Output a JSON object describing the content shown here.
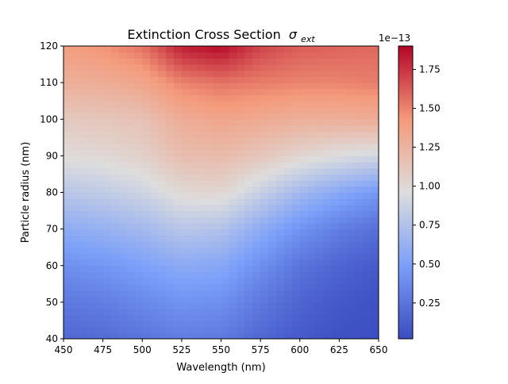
{
  "chart_data": {
    "type": "heatmap",
    "title": "Extinction Cross Section",
    "title_symbol": "σ",
    "title_subscript": "ext",
    "xlabel": "Wavelength (nm)",
    "ylabel": "Particle radius (nm)",
    "xlim": [
      450,
      650
    ],
    "ylim": [
      40,
      120
    ],
    "x_ticks": [
      450,
      475,
      500,
      525,
      550,
      575,
      600,
      625,
      650
    ],
    "y_ticks": [
      40,
      50,
      60,
      70,
      80,
      90,
      100,
      110,
      120
    ],
    "colormap": "coolwarm",
    "colorbar": {
      "offset_label": "1e−13",
      "range": [
        0.02,
        1.9
      ],
      "ticks": [
        0.25,
        0.5,
        0.75,
        1.0,
        1.25,
        1.5,
        1.75
      ],
      "tick_labels": [
        "0.25",
        "0.50",
        "0.75",
        "1.00",
        "1.25",
        "1.50",
        "1.75"
      ]
    },
    "grid": false,
    "x": [
      450,
      475,
      500,
      525,
      550,
      575,
      600,
      625,
      650
    ],
    "y": [
      40,
      50,
      60,
      70,
      80,
      90,
      100,
      110,
      120
    ],
    "z": [
      [
        0.18,
        0.2,
        0.25,
        0.3,
        0.28,
        0.18,
        0.1,
        0.05,
        0.03
      ],
      [
        0.27,
        0.3,
        0.36,
        0.42,
        0.4,
        0.27,
        0.16,
        0.09,
        0.05
      ],
      [
        0.4,
        0.44,
        0.5,
        0.57,
        0.55,
        0.4,
        0.25,
        0.16,
        0.1
      ],
      [
        0.58,
        0.62,
        0.68,
        0.78,
        0.75,
        0.58,
        0.42,
        0.3,
        0.22
      ],
      [
        0.78,
        0.82,
        0.88,
        1.0,
        1.02,
        0.85,
        0.68,
        0.55,
        0.45
      ],
      [
        0.98,
        1.0,
        1.05,
        1.18,
        1.2,
        1.12,
        1.02,
        0.95,
        0.9
      ],
      [
        1.1,
        1.12,
        1.15,
        1.3,
        1.35,
        1.32,
        1.28,
        1.28,
        1.3
      ],
      [
        1.28,
        1.3,
        1.35,
        1.5,
        1.55,
        1.52,
        1.5,
        1.5,
        1.52
      ],
      [
        1.4,
        1.45,
        1.55,
        1.82,
        1.88,
        1.7,
        1.62,
        1.6,
        1.58
      ]
    ]
  }
}
